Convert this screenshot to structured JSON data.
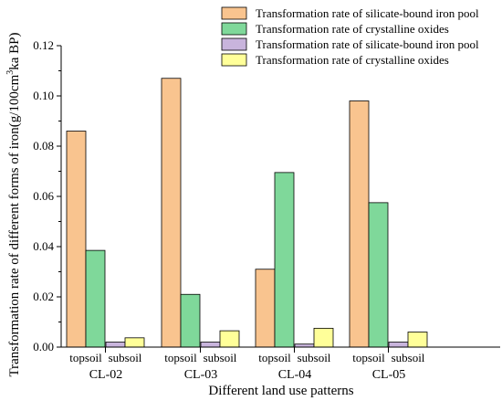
{
  "colors": {
    "series1": "#f9c48f",
    "series2": "#7fd89a",
    "series3": "#c8b4dc",
    "series4": "#ffff99",
    "edge": "#000000"
  },
  "chart_data": {
    "type": "bar",
    "title": "",
    "xlabel": "Different land use patterns",
    "ylabel_main": "Transformation rate of different forms of iron(g/100cm",
    "ylabel_sup": "3",
    "ylabel_tail": "ka BP)",
    "ylim": [
      0,
      0.12
    ],
    "yticks": [
      "0.00",
      "0.02",
      "0.04",
      "0.06",
      "0.08",
      "0.10",
      "0.12"
    ],
    "grid": false,
    "legend_position": "top-right",
    "groups": [
      "CL-02",
      "CL-03",
      "CL-04",
      "CL-05"
    ],
    "layers": [
      "topsoil",
      "subsoil"
    ],
    "series": [
      {
        "name": "Transformation rate of silicate-bound iron pool",
        "layer": "topsoil",
        "values": [
          0.086,
          0.107,
          0.031,
          0.098
        ]
      },
      {
        "name": "Transformation rate of crystalline oxides",
        "layer": "topsoil",
        "values": [
          0.0385,
          0.021,
          0.0695,
          0.0575
        ]
      },
      {
        "name": "Transformation rate of silicate-bound iron pool",
        "layer": "subsoil",
        "values": [
          0.002,
          0.002,
          0.0012,
          0.002
        ]
      },
      {
        "name": "Transformation rate of crystalline oxides",
        "layer": "subsoil",
        "values": [
          0.0037,
          0.0065,
          0.0075,
          0.006
        ]
      }
    ]
  }
}
